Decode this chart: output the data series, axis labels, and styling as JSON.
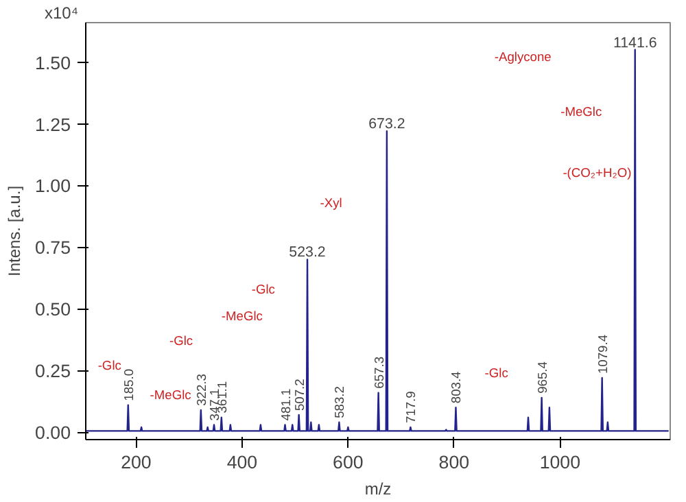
{
  "chart_data": {
    "type": "line",
    "xlabel": "m/z",
    "ylabel": "Intens. [a.u.]",
    "xlim": [
      105,
      1208
    ],
    "ylim": [
      -0.03,
      1.66
    ],
    "xticks": [
      200,
      400,
      600,
      800,
      1000
    ],
    "yticks": [
      {
        "value": 0,
        "label": "0.00"
      },
      {
        "value": 0.25,
        "label": "0.25"
      },
      {
        "value": 0.5,
        "label": "0.50"
      },
      {
        "value": 0.75,
        "label": "0.75"
      },
      {
        "value": 1,
        "label": "1.00"
      },
      {
        "value": 1.25,
        "label": "1.25"
      },
      {
        "value": 1.5,
        "label": "1.50"
      }
    ],
    "grid": false,
    "marker": "none",
    "line_style": "solid",
    "series": [
      {
        "color": "#23238c",
        "x": [
          105,
          183.5,
          185.0,
          186.5,
          208.5,
          210,
          211.5,
          320.8,
          322.3,
          323.8,
          333.5,
          335,
          336.5,
          345.6,
          347.1,
          348.6,
          359.6,
          361.1,
          362.6,
          376.5,
          378,
          379.5,
          433.5,
          435,
          436.5,
          479.6,
          481.1,
          482.6,
          493.5,
          495,
          496.5,
          505.7,
          507.2,
          508.7,
          521.7,
          523.2,
          524.7,
          528.5,
          530,
          531.5,
          543.5,
          545,
          546.5,
          581.7,
          583.2,
          584.7,
          598.5,
          600,
          601.5,
          655.8,
          657.3,
          658.8,
          671.7,
          673.2,
          674.7,
          716.4,
          717.9,
          719.4,
          783.5,
          785,
          786.5,
          801.9,
          803.4,
          804.9,
          938.5,
          940,
          941.5,
          963.9,
          965.4,
          966.9,
          978.5,
          980,
          981.5,
          1077.9,
          1079.4,
          1080.9,
          1088.5,
          1090,
          1091.5,
          1140.1,
          1141.6,
          1143.1,
          1205
        ],
        "values": [
          0.005,
          0.005,
          0.11,
          0.005,
          0.005,
          0.02,
          0.005,
          0.005,
          0.09,
          0.005,
          0.005,
          0.02,
          0.005,
          0.005,
          0.03,
          0.005,
          0.005,
          0.06,
          0.005,
          0.005,
          0.03,
          0.005,
          0.005,
          0.03,
          0.005,
          0.005,
          0.03,
          0.005,
          0.005,
          0.03,
          0.005,
          0.005,
          0.07,
          0.005,
          0.005,
          0.7,
          0.005,
          0.005,
          0.04,
          0.005,
          0.005,
          0.03,
          0.005,
          0.005,
          0.04,
          0.005,
          0.005,
          0.02,
          0.005,
          0.005,
          0.16,
          0.005,
          0.005,
          1.22,
          0.005,
          0.005,
          0.02,
          0.005,
          0.005,
          0.01,
          0.005,
          0.005,
          0.1,
          0.005,
          0.005,
          0.06,
          0.005,
          0.005,
          0.14,
          0.005,
          0.005,
          0.1,
          0.005,
          0.005,
          0.22,
          0.005,
          0.005,
          0.04,
          0.005,
          0.005,
          1.55,
          0.005,
          0.005
        ]
      }
    ],
    "annotations": [
      "x10⁴",
      {
        "text": "185.0",
        "x": 185.0,
        "y": 0.11
      },
      {
        "text": "322.3",
        "x": 322.3,
        "y": 0.09
      },
      {
        "text": "347.1",
        "x": 347.1,
        "y": 0.03
      },
      {
        "text": "361.1",
        "x": 361.1,
        "y": 0.06
      },
      {
        "text": "481.1",
        "x": 481.1,
        "y": 0.03
      },
      {
        "text": "507.2",
        "x": 507.2,
        "y": 0.07
      },
      {
        "text": "523.2",
        "x": 523.2,
        "y": 0.7
      },
      {
        "text": "583.2",
        "x": 583.2,
        "y": 0.04
      },
      {
        "text": "657.3",
        "x": 657.3,
        "y": 0.16
      },
      {
        "text": "673.2",
        "x": 673.2,
        "y": 1.22
      },
      {
        "text": "717.9",
        "x": 717.9,
        "y": 0.02
      },
      {
        "text": "803.4",
        "x": 803.4,
        "y": 0.1
      },
      {
        "text": "965.4",
        "x": 965.4,
        "y": 0.14
      },
      {
        "text": "1079.4",
        "x": 1079.4,
        "y": 0.22
      },
      {
        "text": "1141.6",
        "x": 1141.6,
        "y": 1.55
      },
      "-Glc",
      "-MeGlc",
      "-Glc",
      "-MeGlc",
      "-Glc",
      "-Xyl",
      "-Aglycone",
      "-MeGlc",
      "-(CO₂+H₂O)",
      "-Glc"
    ]
  }
}
